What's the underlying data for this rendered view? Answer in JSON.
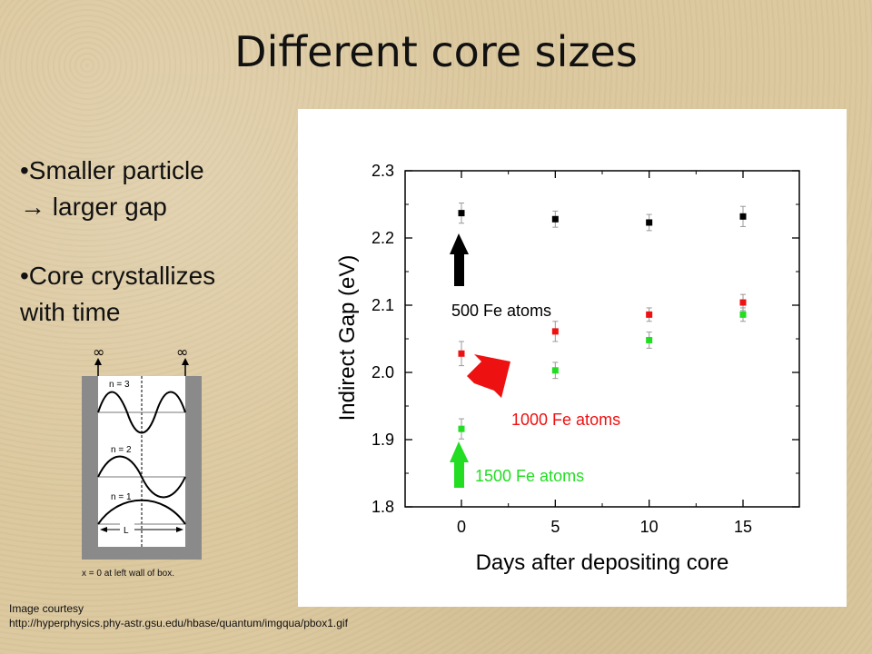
{
  "slide": {
    "title": "Different core sizes",
    "bullets": [
      {
        "line1": "•Smaller particle",
        "line2": " → larger gap"
      },
      {
        "line1": "•Core crystallizes",
        "line2": " with time"
      }
    ],
    "diagram": {
      "infinity_left": "∞",
      "infinity_right": "∞",
      "n3": "n = 3",
      "n2": "n = 2",
      "n1": "n = 1",
      "width_label": "L",
      "caption": "x = 0 at left wall of box."
    },
    "credit": {
      "line1": "Image courtesy",
      "line2": "http://hyperphysics.phy-astr.gsu.edu/hbase/quantum/imgqua/pbox1.gif"
    }
  },
  "colors": {
    "black_series": "#000000",
    "red_series": "#ee1111",
    "green_series": "#22dd22",
    "error_bar": "#999999"
  },
  "chart_data": {
    "type": "scatter",
    "title": "",
    "xlabel": "Days after depositing core",
    "ylabel": "Indirect Gap (eV)",
    "xlim": [
      -3,
      18
    ],
    "ylim": [
      1.8,
      2.3
    ],
    "xticks": [
      "0",
      "5",
      "10",
      "15"
    ],
    "yticks": [
      "1.8",
      "1.9",
      "2.0",
      "2.1",
      "2.2",
      "2.3"
    ],
    "series": [
      {
        "name": "500 Fe atoms",
        "color": "#000000",
        "x": [
          0,
          5,
          10,
          15
        ],
        "y": [
          2.237,
          2.228,
          2.223,
          2.232
        ],
        "err": [
          0.015,
          0.012,
          0.012,
          0.015
        ]
      },
      {
        "name": "1000 Fe atoms",
        "color": "#ee1111",
        "x": [
          0,
          5,
          10,
          15
        ],
        "y": [
          2.028,
          2.061,
          2.086,
          2.104
        ],
        "err": [
          0.018,
          0.015,
          0.01,
          0.012
        ]
      },
      {
        "name": "1500 Fe atoms",
        "color": "#22dd22",
        "x": [
          0,
          5,
          10,
          15
        ],
        "y": [
          1.916,
          2.003,
          2.048,
          2.086
        ],
        "err": [
          0.015,
          0.012,
          0.012,
          0.01
        ]
      }
    ],
    "annotations": [
      {
        "text": "500 Fe atoms",
        "color": "#000000"
      },
      {
        "text": "1000 Fe atoms",
        "color": "#ee1111"
      },
      {
        "text": "1500 Fe atoms",
        "color": "#22dd22"
      }
    ]
  }
}
